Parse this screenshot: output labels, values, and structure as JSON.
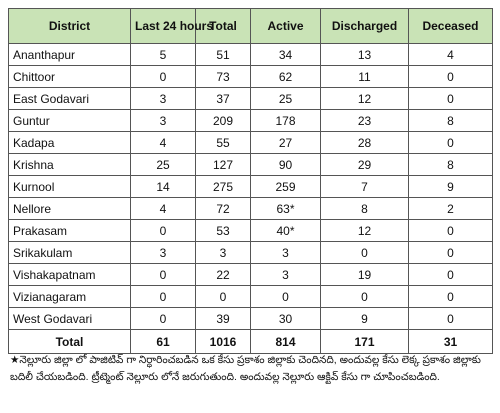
{
  "table": {
    "header": [
      "District",
      "Last 24 hours",
      "Total",
      "Active",
      "Discharged",
      "Deceased"
    ],
    "rows": [
      [
        "Ananthapur",
        5,
        51,
        34,
        13,
        4
      ],
      [
        "Chittoor",
        0,
        73,
        62,
        11,
        0
      ],
      [
        "East Godavari",
        3,
        37,
        25,
        12,
        0
      ],
      [
        "Guntur",
        3,
        209,
        178,
        23,
        8
      ],
      [
        "Kadapa",
        4,
        55,
        27,
        28,
        0
      ],
      [
        "Krishna",
        25,
        127,
        90,
        29,
        8
      ],
      [
        "Kurnool",
        14,
        275,
        259,
        7,
        9
      ],
      [
        "Nellore",
        4,
        72,
        "63*",
        8,
        2
      ],
      [
        "Prakasam",
        0,
        53,
        "40*",
        12,
        0
      ],
      [
        "Srikakulam",
        3,
        3,
        3,
        0,
        0
      ],
      [
        "Vishakapatnam",
        0,
        22,
        3,
        19,
        0
      ],
      [
        "Vizianagaram",
        0,
        0,
        0,
        0,
        0
      ],
      [
        "West Godavari",
        0,
        39,
        30,
        9,
        0
      ]
    ],
    "total": [
      "Total",
      61,
      1016,
      814,
      171,
      31
    ]
  },
  "footnote": "★నెల్లూరు జిల్లా లో  పాజిటివ్ గా నిర్ధారించబడిన ఒక కేసు ప్రకాశం జిల్లాకు చెందినది, అందువల్ల కేసు లెక్క ప్రకాశం జిల్లాకు బదిలీ చేయబడింది. ట్రీట్మెంట్ నెల్లూరు లోనే జరుగుతుంది. అందువల్ల నెల్లూరు ఆక్టివ్ కేసు గా చూపించబడింది."
}
